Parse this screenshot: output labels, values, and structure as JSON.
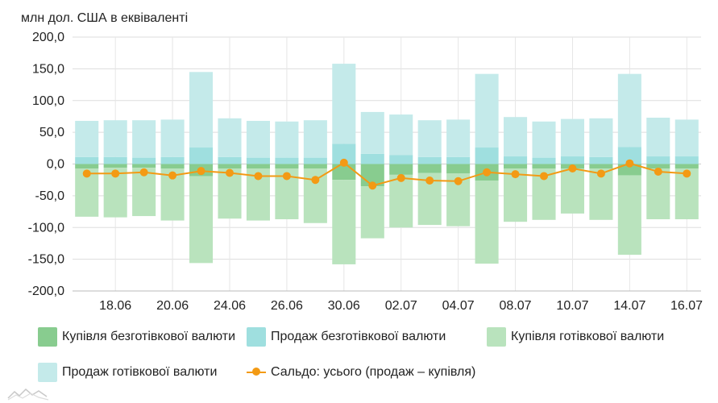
{
  "chart_data": {
    "type": "bar",
    "ylabel": "млн дол. США в еквіваленті",
    "ylim": [
      -200,
      200
    ],
    "y_ticks": [
      "200,0",
      "150,0",
      "100,0",
      "50,0",
      "0,0",
      "-50,0",
      "-100,0",
      "-150,0",
      "-200,0"
    ],
    "x_tick_labels": [
      "18.06",
      "20.06",
      "24.06",
      "26.06",
      "30.06",
      "02.07",
      "04.07",
      "08.07",
      "10.07",
      "14.07",
      "16.07"
    ],
    "x_tick_indices": [
      1,
      3,
      5,
      7,
      9,
      11,
      13,
      15,
      17,
      19,
      21
    ],
    "grid": true,
    "legend_position": "bottom",
    "series": [
      {
        "name": "Купівля безготівкової валюти",
        "color": "#88cc8f",
        "values": [
          -7,
          -6,
          -6,
          -7,
          -19,
          -7,
          -7,
          -7,
          -7,
          -25,
          -35,
          -17,
          -14,
          -15,
          -26,
          -7,
          -7,
          -7,
          -7,
          -18,
          -7,
          -7
        ]
      },
      {
        "name": "Продаж безготівкової валюти",
        "color": "#9fdfdf",
        "values": [
          11,
          11,
          10,
          11,
          26,
          11,
          10,
          10,
          10,
          32,
          16,
          14,
          11,
          11,
          26,
          12,
          10,
          12,
          11,
          27,
          12,
          12
        ]
      },
      {
        "name": "Купівля готівкової валюти",
        "color": "#b9e3bd",
        "values": [
          -76,
          -78,
          -76,
          -82,
          -137,
          -79,
          -82,
          -80,
          -86,
          -133,
          -82,
          -83,
          -82,
          -83,
          -131,
          -84,
          -81,
          -71,
          -81,
          -125,
          -80,
          -80
        ]
      },
      {
        "name": "Продаж готівкової валюти",
        "color": "#c4eaea",
        "values": [
          57,
          58,
          59,
          59,
          119,
          61,
          58,
          57,
          59,
          126,
          66,
          64,
          58,
          59,
          116,
          62,
          57,
          59,
          61,
          115,
          61,
          58
        ]
      },
      {
        "name": "Сальдо: усього (продаж – купівля)",
        "color": "#f39a14",
        "type": "line",
        "values": [
          -15,
          -15,
          -13,
          -18,
          -11,
          -14,
          -19,
          -19,
          -25,
          2,
          -34,
          -22,
          -26,
          -27,
          -13,
          -16,
          -19,
          -7,
          -15,
          1,
          -12,
          -15
        ]
      }
    ]
  }
}
